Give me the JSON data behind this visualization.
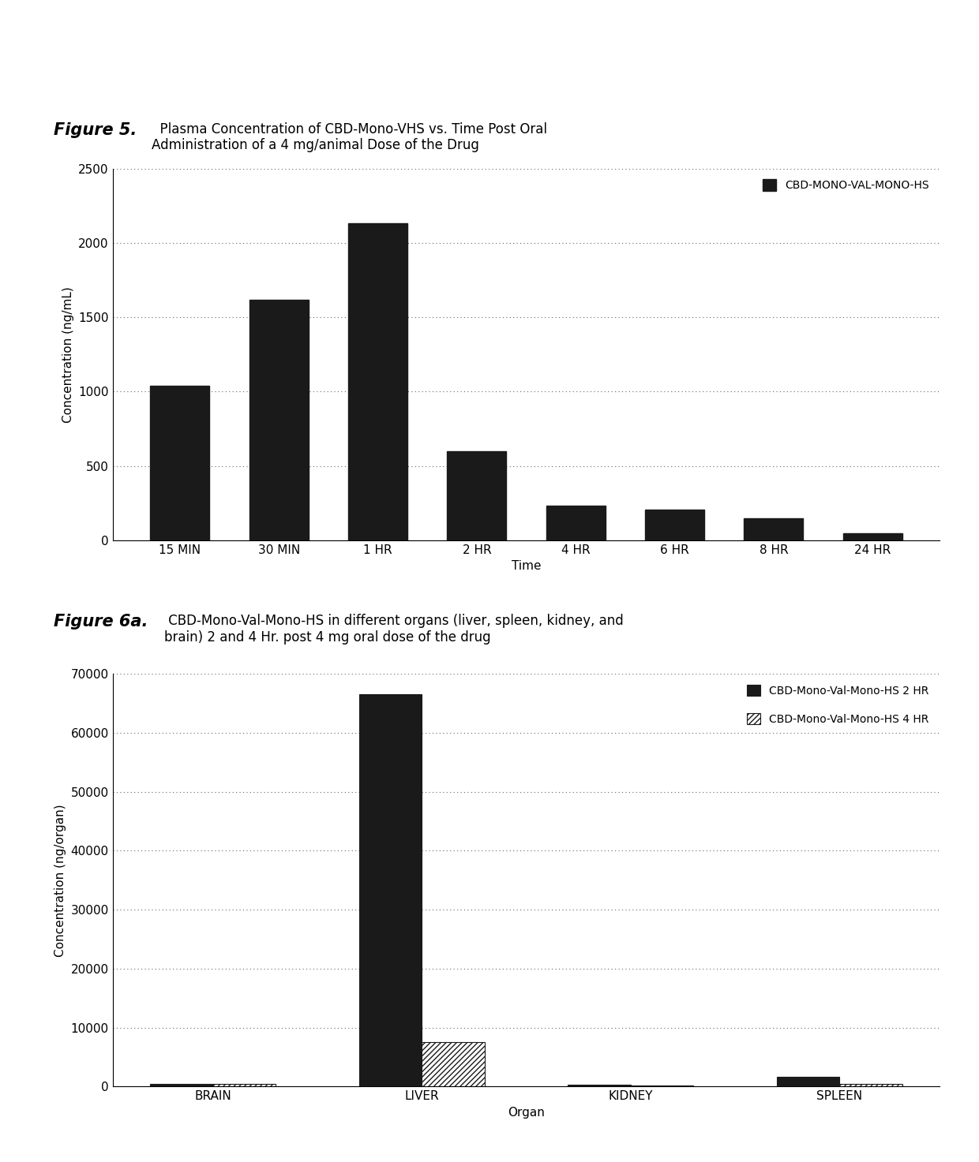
{
  "fig5_title_bold": "Figure 5.",
  "fig5_title_normal": "  Plasma Concentration of CBD-Mono-VHS vs. Time Post Oral\nAdministration of a 4 mg/animal Dose of the Drug",
  "fig5_categories": [
    "15 MIN",
    "30 MIN",
    "1 HR",
    "2 HR",
    "4 HR",
    "6 HR",
    "8 HR",
    "24 HR"
  ],
  "fig5_values": [
    1040,
    1620,
    2130,
    600,
    235,
    205,
    150,
    50
  ],
  "fig5_ylabel": "Concentration (ng/mL)",
  "fig5_xlabel": "Time",
  "fig5_ylim": [
    0,
    2500
  ],
  "fig5_yticks": [
    0,
    500,
    1000,
    1500,
    2000,
    2500
  ],
  "fig5_legend": "CBD-MONO-VAL-MONO-HS",
  "fig5_bar_color": "#1a1a1a",
  "fig6a_title_bold": "Figure 6a.",
  "fig6a_title_normal": " CBD-Mono-Val-Mono-HS in different organs (liver, spleen, kidney, and\nbrain) 2 and 4 Hr. post 4 mg oral dose of the drug",
  "fig6a_categories": [
    "BRAIN",
    "LIVER",
    "KIDNEY",
    "SPLEEN"
  ],
  "fig6a_values_2hr": [
    500,
    66500,
    300,
    1700
  ],
  "fig6a_values_4hr": [
    400,
    7500,
    200,
    400
  ],
  "fig6a_ylabel": "Concentration (ng/organ)",
  "fig6a_xlabel": "Organ",
  "fig6a_ylim": [
    0,
    70000
  ],
  "fig6a_yticks": [
    0,
    10000,
    20000,
    30000,
    40000,
    50000,
    60000,
    70000
  ],
  "fig6a_legend_2hr": "CBD-Mono-Val-Mono-HS 2 HR",
  "fig6a_legend_4hr": "CBD-Mono-Val-Mono-HS 4 HR",
  "fig6a_bar_color_2hr": "#1a1a1a",
  "fig6a_bar_color_4hr": "#ffffff",
  "background_color": "#ffffff"
}
